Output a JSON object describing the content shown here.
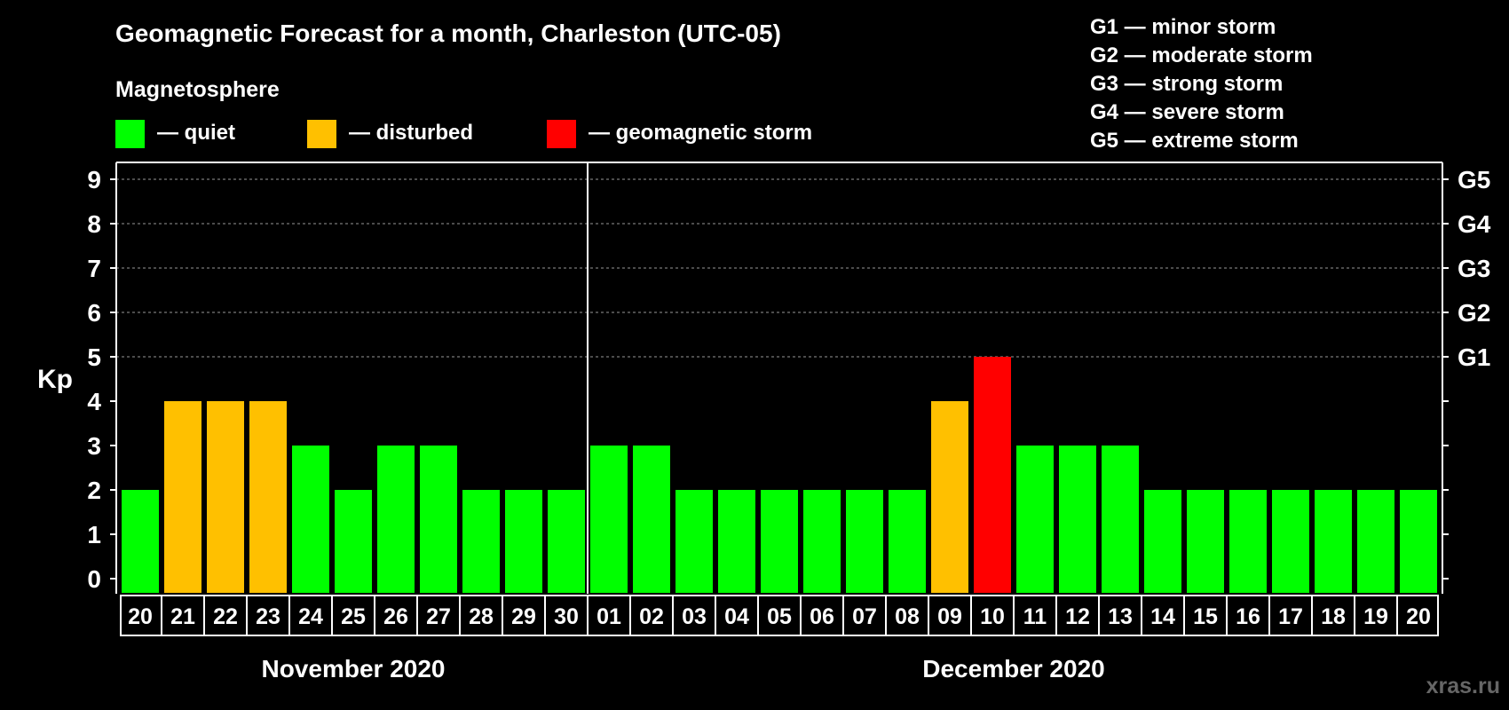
{
  "colors": {
    "background": "#000000",
    "text": "#ffffff",
    "quiet": "#00ff00",
    "disturbed": "#ffc000",
    "storm": "#ff0000",
    "grid": "#999999",
    "watermark": "#666666"
  },
  "watermark": "xras.ru",
  "legend": {
    "heading": "Magnetosphere",
    "items": [
      {
        "key": "quiet",
        "label": "— quiet"
      },
      {
        "key": "disturbed",
        "label": "— disturbed"
      },
      {
        "key": "storm",
        "label": "— geomagnetic storm"
      }
    ]
  },
  "storm_scale": [
    "G1 — minor storm",
    "G2 — moderate storm",
    "G3 — strong storm",
    "G4 — severe storm",
    "G5 — extreme storm"
  ],
  "chart_data": {
    "type": "bar",
    "title": "Geomagnetic Forecast for a month, Charleston (UTC-05)",
    "ylabel": "Kp",
    "ylim": [
      0,
      9
    ],
    "yticks": [
      "0",
      "1",
      "2",
      "3",
      "4",
      "5",
      "6",
      "7",
      "8",
      "9"
    ],
    "right_axis": [
      {
        "kp": 5,
        "label": "G1"
      },
      {
        "kp": 6,
        "label": "G2"
      },
      {
        "kp": 7,
        "label": "G3"
      },
      {
        "kp": 8,
        "label": "G4"
      },
      {
        "kp": 9,
        "label": "G5"
      }
    ],
    "grid": "horizontal dashed at Kp 5–9",
    "categories": [
      "20",
      "21",
      "22",
      "23",
      "24",
      "25",
      "26",
      "27",
      "28",
      "29",
      "30",
      "01",
      "02",
      "03",
      "04",
      "05",
      "06",
      "07",
      "08",
      "09",
      "10",
      "11",
      "12",
      "13",
      "14",
      "15",
      "16",
      "17",
      "18",
      "19",
      "20"
    ],
    "values": [
      2,
      4,
      4,
      4,
      3,
      2,
      3,
      3,
      2,
      2,
      2,
      3,
      3,
      2,
      2,
      2,
      2,
      2,
      2,
      4,
      5,
      3,
      3,
      3,
      2,
      2,
      2,
      2,
      2,
      2,
      2
    ],
    "status": [
      "quiet",
      "disturbed",
      "disturbed",
      "disturbed",
      "quiet",
      "quiet",
      "quiet",
      "quiet",
      "quiet",
      "quiet",
      "quiet",
      "quiet",
      "quiet",
      "quiet",
      "quiet",
      "quiet",
      "quiet",
      "quiet",
      "quiet",
      "disturbed",
      "storm",
      "quiet",
      "quiet",
      "quiet",
      "quiet",
      "quiet",
      "quiet",
      "quiet",
      "quiet",
      "quiet",
      "quiet"
    ],
    "months": [
      {
        "label": "November 2020",
        "first": 0,
        "last": 10
      },
      {
        "label": "December 2020",
        "first": 11,
        "last": 30
      }
    ]
  }
}
